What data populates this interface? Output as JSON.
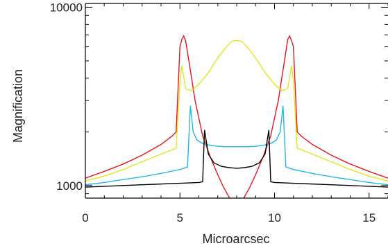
{
  "chart_data": {
    "type": "line",
    "title": "",
    "xlabel": "Microarcsec",
    "ylabel": "Magnification",
    "xlim": [
      0,
      16
    ],
    "ylim": [
      850,
      10500
    ],
    "yscale": "log",
    "x_ticks": [
      0,
      5,
      10,
      15
    ],
    "x_tick_labels": [
      "0",
      "5",
      "10",
      "15"
    ],
    "y_ticks": [
      1000,
      10000
    ],
    "y_tick_labels": [
      "1000",
      "10000"
    ],
    "grid": false,
    "legend": "none",
    "series": [
      {
        "color": "#e8141c",
        "x": [
          0,
          1,
          2,
          3,
          4,
          4.6,
          4.8,
          5.0,
          5.1,
          5.2,
          5.3,
          5.5,
          5.8,
          6.2,
          6.6,
          7.0,
          7.3,
          7.6,
          7.9,
          8.1,
          8.4,
          8.7,
          9.0,
          9.4,
          9.8,
          10.2,
          10.5,
          10.7,
          10.8,
          10.9,
          11.0,
          11.2,
          11.4,
          12,
          13,
          14,
          15,
          16
        ],
        "y": [
          1100,
          1200,
          1320,
          1480,
          1700,
          1900,
          2000,
          6000,
          6600,
          6900,
          6500,
          4800,
          3000,
          1900,
          1450,
          1150,
          980,
          860,
          760,
          760,
          860,
          980,
          1150,
          1450,
          1900,
          3000,
          4800,
          6600,
          6900,
          6500,
          6000,
          2000,
          1900,
          1700,
          1480,
          1320,
          1200,
          1100
        ]
      },
      {
        "color": "#e2e81c",
        "x": [
          0,
          1,
          2,
          3,
          4,
          4.8,
          5.0,
          5.1,
          5.3,
          5.6,
          6.0,
          6.5,
          7.0,
          7.4,
          7.7,
          7.9,
          8.1,
          8.3,
          8.6,
          9.0,
          9.5,
          10.0,
          10.4,
          10.7,
          10.9,
          11.0,
          11.2,
          12,
          13,
          14,
          15,
          16
        ],
        "y": [
          1060,
          1130,
          1230,
          1360,
          1500,
          1620,
          3800,
          4700,
          3500,
          3400,
          3700,
          4300,
          5200,
          5900,
          6400,
          6500,
          6500,
          6400,
          5900,
          5200,
          4300,
          3700,
          3400,
          3500,
          4700,
          3800,
          1620,
          1500,
          1360,
          1230,
          1130,
          1060
        ]
      },
      {
        "color": "#1cb8e8",
        "x": [
          0,
          1,
          2,
          3,
          4,
          5.0,
          5.4,
          5.55,
          5.7,
          5.9,
          6.2,
          6.6,
          7.0,
          7.5,
          8.0,
          8.5,
          9.0,
          9.4,
          9.8,
          10.1,
          10.3,
          10.45,
          10.6,
          11,
          12,
          13,
          14,
          15,
          16
        ],
        "y": [
          1010,
          1040,
          1080,
          1120,
          1170,
          1230,
          1270,
          2800,
          2000,
          1800,
          1720,
          1680,
          1660,
          1650,
          1650,
          1650,
          1660,
          1680,
          1720,
          1800,
          2000,
          2800,
          1270,
          1230,
          1170,
          1120,
          1080,
          1040,
          1010
        ]
      },
      {
        "color": "#000000",
        "x": [
          0,
          1,
          2,
          3,
          4,
          5,
          6.0,
          6.2,
          6.3,
          6.5,
          6.8,
          7.2,
          7.6,
          8.0,
          8.4,
          8.8,
          9.2,
          9.5,
          9.7,
          9.8,
          10.0,
          11,
          12,
          13,
          14,
          15,
          16
        ],
        "y": [
          980,
          990,
          1000,
          1010,
          1020,
          1030,
          1040,
          1050,
          2050,
          1500,
          1340,
          1280,
          1260,
          1250,
          1260,
          1280,
          1340,
          1500,
          2050,
          1050,
          1040,
          1030,
          1020,
          1010,
          1000,
          990,
          980
        ]
      }
    ]
  }
}
